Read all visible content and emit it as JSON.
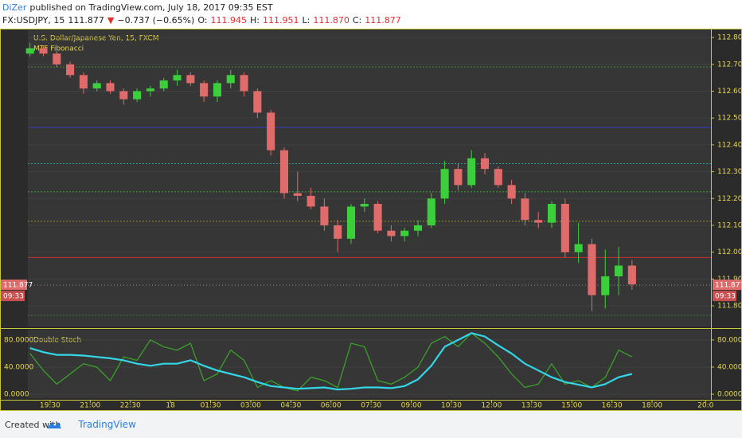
{
  "header": {
    "author": "DiZer",
    "published": "published on TradingView.com, July 18, 2017 09:35 EST",
    "symbol": "FX:USDJPY, 15",
    "price": "111.877",
    "arrow": "▼",
    "change": "−0.737 (−0.65%)",
    "o_label": "O:",
    "o": "111.945",
    "h_label": "H:",
    "h": "111.951",
    "l_label": "L:",
    "l": "111.870",
    "c_label": "C:",
    "c": "111.877"
  },
  "chart_data": [
    {
      "type": "candlestick",
      "title": "U.S. Dollar/Japanese Yen, 15, FXCM",
      "subtitle": "MTF Fibonacci",
      "up_color": "#3ccf3c",
      "down_color": "#e06b6b",
      "x": [
        18.75,
        19.25,
        19.75,
        20.25,
        20.75,
        21.25,
        21.75,
        22.25,
        22.75,
        23.25,
        23.75,
        24.25,
        24.75,
        25.25,
        25.75,
        26.25,
        26.75,
        27.25,
        27.75,
        28.25,
        28.75,
        29.25,
        29.75,
        30.25,
        30.75,
        31.25,
        31.75,
        32.25,
        32.75,
        33.25,
        33.75,
        34.25,
        34.75,
        35.25,
        35.75,
        36.25,
        36.75,
        37.25,
        37.75,
        38.25,
        38.75,
        39.25,
        39.75,
        40.25,
        40.75,
        41.25
      ],
      "open": [
        112.74,
        112.76,
        112.74,
        112.7,
        112.66,
        112.61,
        112.63,
        112.6,
        112.57,
        112.6,
        112.61,
        112.64,
        112.66,
        112.63,
        112.58,
        112.63,
        112.66,
        112.6,
        112.52,
        112.38,
        112.22,
        112.21,
        112.17,
        112.1,
        112.05,
        112.17,
        112.18,
        112.08,
        112.06,
        112.08,
        112.1,
        112.2,
        112.31,
        112.25,
        112.35,
        112.31,
        112.25,
        112.2,
        112.12,
        112.11,
        112.18,
        112.0,
        112.03,
        111.84,
        111.91,
        111.95
      ],
      "high": [
        112.78,
        112.77,
        112.75,
        112.71,
        112.67,
        112.64,
        112.64,
        112.61,
        112.61,
        112.62,
        112.65,
        112.68,
        112.67,
        112.64,
        112.64,
        112.68,
        112.67,
        112.61,
        112.53,
        112.39,
        112.3,
        112.24,
        112.2,
        112.12,
        112.18,
        112.2,
        112.19,
        112.1,
        112.09,
        112.12,
        112.22,
        112.34,
        112.33,
        112.38,
        112.37,
        112.32,
        112.27,
        112.22,
        112.15,
        112.19,
        112.2,
        112.11,
        112.05,
        112.01,
        112.02,
        111.97
      ],
      "low": [
        112.73,
        112.73,
        112.69,
        112.65,
        112.59,
        112.6,
        112.59,
        112.55,
        112.56,
        112.58,
        112.6,
        112.62,
        112.62,
        112.56,
        112.56,
        112.61,
        112.58,
        112.5,
        112.36,
        112.2,
        112.19,
        112.16,
        112.08,
        112.0,
        112.03,
        112.15,
        112.07,
        112.04,
        112.04,
        112.06,
        112.09,
        112.18,
        112.23,
        112.24,
        112.29,
        112.24,
        112.18,
        112.1,
        112.09,
        112.09,
        111.98,
        111.96,
        111.78,
        111.79,
        111.84,
        111.86
      ],
      "close": [
        112.76,
        112.74,
        112.7,
        112.66,
        112.61,
        112.63,
        112.6,
        112.57,
        112.6,
        112.61,
        112.64,
        112.66,
        112.63,
        112.58,
        112.63,
        112.66,
        112.6,
        112.52,
        112.38,
        112.22,
        112.21,
        112.17,
        112.1,
        112.05,
        112.17,
        112.18,
        112.08,
        112.06,
        112.08,
        112.1,
        112.2,
        112.31,
        112.25,
        112.35,
        112.31,
        112.25,
        112.2,
        112.12,
        112.11,
        112.18,
        112.0,
        112.03,
        111.84,
        111.91,
        111.95,
        111.88
      ],
      "levels": [
        {
          "value": 112.69,
          "color": "#4a8a3a"
        },
        {
          "value": 112.465,
          "color": "#3a3ac8"
        },
        {
          "value": 112.33,
          "color": "#2a9a9a"
        },
        {
          "value": 112.225,
          "color": "#3aa83a"
        },
        {
          "value": 112.115,
          "color": "#a0902a"
        },
        {
          "value": 111.98,
          "color": "#c83030"
        },
        {
          "value": 111.765,
          "color": "#3a7a3a"
        }
      ],
      "last_price": {
        "value": 111.877,
        "label": "111.877"
      },
      "countdown": "09:33",
      "xlim": [
        18.67,
        44.2
      ],
      "ylim": [
        111.723,
        112.827
      ],
      "yticks": [
        {
          "value": 112.8,
          "label": "112.800"
        },
        {
          "value": 112.7,
          "label": "112.700"
        },
        {
          "value": 112.6,
          "label": "112.600"
        },
        {
          "value": 112.5,
          "label": "112.500"
        },
        {
          "value": 112.4,
          "label": "112.400"
        },
        {
          "value": 112.3,
          "label": "112.300"
        },
        {
          "value": 112.2,
          "label": "112.200"
        },
        {
          "value": 112.1,
          "label": "112.100"
        },
        {
          "value": 112.0,
          "label": "112.000"
        },
        {
          "value": 111.9,
          "label": "111.900"
        },
        {
          "value": 111.8,
          "label": "111.800"
        }
      ]
    },
    {
      "type": "line",
      "title": "Double Stoch",
      "x": [
        18.75,
        19.25,
        19.75,
        20.25,
        20.75,
        21.25,
        21.75,
        22.25,
        22.75,
        23.25,
        23.75,
        24.25,
        24.75,
        25.25,
        25.75,
        26.25,
        26.75,
        27.25,
        27.75,
        28.25,
        28.75,
        29.25,
        29.75,
        30.25,
        30.75,
        31.25,
        31.75,
        32.25,
        32.75,
        33.25,
        33.75,
        34.25,
        34.75,
        35.25,
        35.75,
        36.25,
        36.75,
        37.25,
        37.75,
        38.25,
        38.75,
        39.25,
        39.75,
        40.25,
        40.75,
        41.25
      ],
      "series": [
        {
          "color": "#3aa829",
          "width": 1.2,
          "values": [
            60,
            35,
            15,
            30,
            45,
            40,
            20,
            55,
            50,
            80,
            70,
            65,
            75,
            20,
            30,
            65,
            50,
            10,
            20,
            10,
            5,
            25,
            20,
            10,
            75,
            70,
            20,
            15,
            25,
            40,
            75,
            85,
            70,
            90,
            75,
            55,
            30,
            10,
            15,
            45,
            15,
            20,
            10,
            25,
            65,
            55
          ]
        },
        {
          "color": "#33d6e6",
          "width": 2.2,
          "values": [
            68,
            62,
            58,
            58,
            57,
            55,
            53,
            50,
            45,
            42,
            45,
            45,
            50,
            42,
            35,
            30,
            25,
            18,
            12,
            10,
            8,
            9,
            10,
            7,
            8,
            10,
            10,
            9,
            12,
            22,
            42,
            70,
            80,
            90,
            85,
            72,
            60,
            45,
            35,
            25,
            18,
            14,
            10,
            15,
            25,
            30
          ]
        }
      ],
      "xlim": [
        18.67,
        44.2
      ],
      "ylim": [
        -5.8,
        95.1
      ],
      "yticks": [
        {
          "value": 80,
          "label": "80.0000"
        },
        {
          "value": 40,
          "label": "40.0000"
        },
        {
          "value": 0,
          "label": "0.0000"
        }
      ],
      "xticks": [
        {
          "value": 19.5,
          "label": "19:30"
        },
        {
          "value": 21,
          "label": "21:00"
        },
        {
          "value": 22.5,
          "label": "22:30"
        },
        {
          "value": 24,
          "label": "18"
        },
        {
          "value": 25.5,
          "label": "01:30"
        },
        {
          "value": 27,
          "label": "03:00"
        },
        {
          "value": 28.5,
          "label": "04:30"
        },
        {
          "value": 30,
          "label": "06:00"
        },
        {
          "value": 31.5,
          "label": "07:30"
        },
        {
          "value": 33,
          "label": "09:00"
        },
        {
          "value": 34.5,
          "label": "10:30"
        },
        {
          "value": 36,
          "label": "12:00"
        },
        {
          "value": 37.5,
          "label": "13:30"
        },
        {
          "value": 39,
          "label": "15:00"
        },
        {
          "value": 40.5,
          "label": "16:30"
        },
        {
          "value": 42,
          "label": "18:00"
        },
        {
          "value": 44,
          "label": "20:0"
        }
      ]
    }
  ],
  "footer": {
    "created_with": "Created with",
    "brand": "TradingView"
  }
}
